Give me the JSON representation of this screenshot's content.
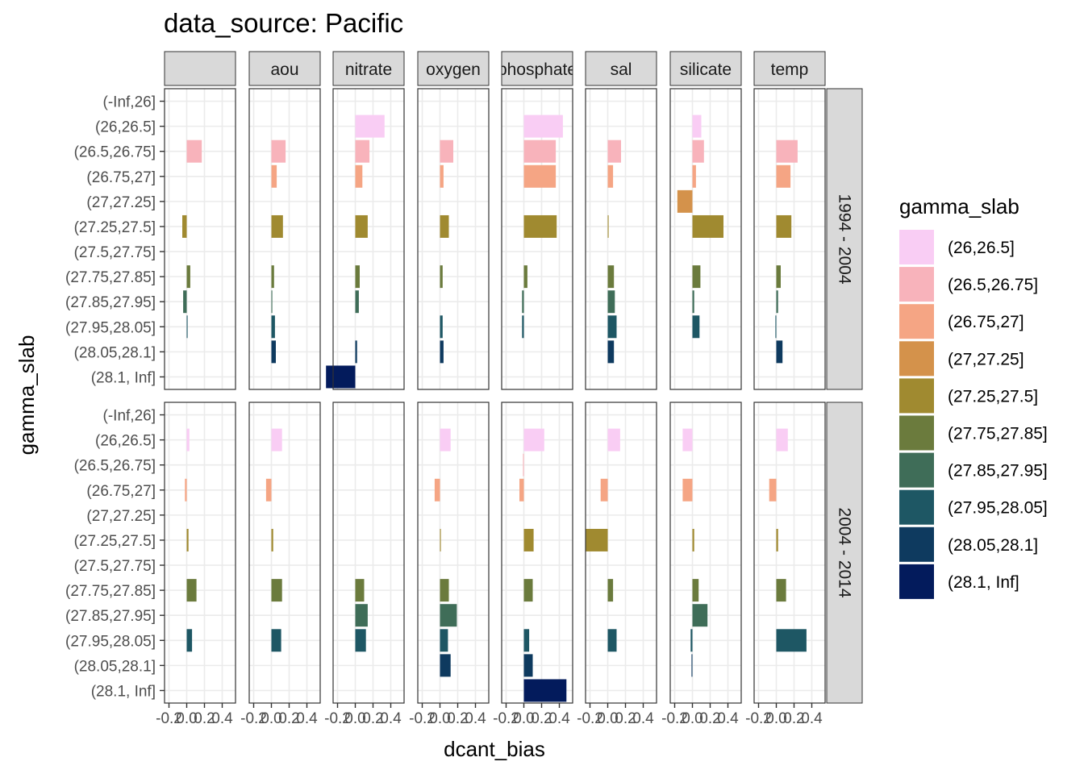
{
  "chart_data": {
    "type": "bar",
    "orientation": "horizontal",
    "title": "data_source: Pacific",
    "xlabel": "dcant_bias",
    "ylabel": "gamma_slab",
    "xlim": [
      -0.25,
      0.55
    ],
    "xticks": [
      -0.2,
      0.0,
      0.2,
      0.4
    ],
    "xtick_labels": [
      "-0.2",
      "0.0",
      "0.2",
      "0.4"
    ],
    "grid": true,
    "legend_position": "right",
    "legend_title": "gamma_slab",
    "categories": [
      "(-Inf,26]",
      "(26,26.5]",
      "(26.5,26.75]",
      "(26.75,27]",
      "(27,27.25]",
      "(27.25,27.5]",
      "(27.5,27.75]",
      "(27.75,27.85]",
      "(27.85,27.95]",
      "(27.95,28.05]",
      "(28.05,28.1]",
      "(28.1, Inf]"
    ],
    "legend_entries": [
      "(26,26.5]",
      "(26.5,26.75]",
      "(26.75,27]",
      "(27,27.25]",
      "(27.25,27.5]",
      "(27.75,27.85]",
      "(27.85,27.95]",
      "(27.95,28.05]",
      "(28.05,28.1]",
      "(28.1, Inf]"
    ],
    "colors": {
      "(26,26.5]": "#f9cdf4",
      "(26.5,26.75]": "#f8b3bb",
      "(26.75,27]": "#f5a584",
      "(27,27.25]": "#d4924b",
      "(27.25,27.5]": "#a08a30",
      "(27.75,27.85]": "#6b7b3d",
      "(27.85,27.95]": "#3f6d58",
      "(27.95,28.05]": "#1e5764",
      "(28.05,28.1]": "#0e3a5f",
      "(28.1, Inf]": "#031b5c"
    },
    "col_facets": [
      "",
      "aou",
      "nitrate",
      "oxygen",
      "phosphate",
      "sal",
      "silicate",
      "temp"
    ],
    "row_facets": [
      "1994 - 2004",
      "2004 - 2014"
    ],
    "panels": [
      {
        "row": "1994 - 2004",
        "col": "",
        "bars": {
          "(26.5,26.75]": 0.17,
          "(27.25,27.5]": -0.05,
          "(27.75,27.85]": 0.04,
          "(27.85,27.95]": -0.04,
          "(27.95,28.05]": 0.01
        }
      },
      {
        "row": "1994 - 2004",
        "col": "aou",
        "bars": {
          "(26.5,26.75]": 0.16,
          "(26.75,27]": 0.06,
          "(27.25,27.5]": 0.13,
          "(27.75,27.85]": 0.03,
          "(27.85,27.95]": 0.01,
          "(27.95,28.05]": 0.04,
          "(28.05,28.1]": 0.05
        }
      },
      {
        "row": "1994 - 2004",
        "col": "nitrate",
        "bars": {
          "(26,26.5]": 0.33,
          "(26.5,26.75]": 0.16,
          "(26.75,27]": 0.08,
          "(27.25,27.5]": 0.14,
          "(27.75,27.85]": 0.05,
          "(27.85,27.95]": 0.04,
          "(28.05,28.1]": 0.02,
          "(28.1, Inf]": -0.33
        }
      },
      {
        "row": "1994 - 2004",
        "col": "oxygen",
        "bars": {
          "(26.5,26.75]": 0.15,
          "(26.75,27]": 0.04,
          "(27.25,27.5]": 0.1,
          "(27.75,27.85]": 0.03,
          "(27.95,28.05]": 0.03,
          "(28.05,28.1]": 0.04
        }
      },
      {
        "row": "1994 - 2004",
        "col": "phosphate",
        "bars": {
          "(26,26.5]": 0.44,
          "(26.5,26.75]": 0.36,
          "(26.75,27]": 0.36,
          "(27.25,27.5]": 0.37,
          "(27.75,27.85]": 0.04,
          "(27.85,27.95]": -0.02,
          "(27.95,28.05]": -0.02
        }
      },
      {
        "row": "1994 - 2004",
        "col": "sal",
        "bars": {
          "(26.5,26.75]": 0.15,
          "(26.75,27]": 0.06,
          "(27.25,27.5]": 0.01,
          "(27.75,27.85]": 0.07,
          "(27.85,27.95]": 0.08,
          "(27.95,28.05]": 0.1,
          "(28.05,28.1]": 0.07
        }
      },
      {
        "row": "1994 - 2004",
        "col": "silicate",
        "bars": {
          "(26,26.5]": 0.1,
          "(26.5,26.75]": 0.13,
          "(26.75,27]": 0.04,
          "(27,27.25]": -0.17,
          "(27.25,27.5]": 0.35,
          "(27.75,27.85]": 0.09,
          "(27.85,27.95]": 0.02,
          "(27.95,28.05]": 0.08
        }
      },
      {
        "row": "1994 - 2004",
        "col": "temp",
        "bars": {
          "(26.5,26.75]": 0.24,
          "(26.75,27]": 0.16,
          "(27.25,27.5]": 0.17,
          "(27.75,27.85]": 0.05,
          "(27.85,27.95]": 0.02,
          "(27.95,28.05]": -0.01,
          "(28.05,28.1]": 0.07
        }
      },
      {
        "row": "2004 - 2014",
        "col": "",
        "bars": {
          "(26,26.5]": 0.03,
          "(26.75,27]": -0.02,
          "(27.25,27.5]": 0.02,
          "(27.75,27.85]": 0.11,
          "(27.95,28.05]": 0.06
        }
      },
      {
        "row": "2004 - 2014",
        "col": "aou",
        "bars": {
          "(26,26.5]": 0.12,
          "(26.75,27]": -0.06,
          "(27.25,27.5]": 0.02,
          "(27.75,27.85]": 0.12,
          "(27.95,28.05]": 0.11
        }
      },
      {
        "row": "2004 - 2014",
        "col": "nitrate",
        "bars": {
          "(27.75,27.85]": 0.1,
          "(27.85,27.95]": 0.14,
          "(27.95,28.05]": 0.12
        }
      },
      {
        "row": "2004 - 2014",
        "col": "oxygen",
        "bars": {
          "(26,26.5]": 0.12,
          "(26.75,27]": -0.06,
          "(27.25,27.5]": 0.01,
          "(27.75,27.85]": 0.1,
          "(27.85,27.95]": 0.19,
          "(27.95,28.05]": 0.09,
          "(28.05,28.1]": 0.12
        }
      },
      {
        "row": "2004 - 2014",
        "col": "phosphate",
        "bars": {
          "(26,26.5]": 0.23,
          "(26.5,26.75]": -0.01,
          "(26.75,27]": -0.05,
          "(27.25,27.5]": 0.11,
          "(27.75,27.85]": 0.1,
          "(27.95,28.05]": 0.06,
          "(28.05,28.1]": 0.1,
          "(28.1, Inf]": 0.48
        }
      },
      {
        "row": "2004 - 2014",
        "col": "sal",
        "bars": {
          "(26,26.5]": 0.14,
          "(26.75,27]": -0.08,
          "(27.25,27.5]": -0.25,
          "(27.75,27.85]": 0.06,
          "(27.95,28.05]": 0.1
        }
      },
      {
        "row": "2004 - 2014",
        "col": "silicate",
        "bars": {
          "(26,26.5]": -0.11,
          "(26.75,27]": -0.11,
          "(27.25,27.5]": 0.02,
          "(27.75,27.85]": 0.07,
          "(27.85,27.95]": 0.17,
          "(27.95,28.05]": -0.02,
          "(28.05,28.1]": -0.01
        }
      },
      {
        "row": "2004 - 2014",
        "col": "temp",
        "bars": {
          "(26,26.5]": 0.13,
          "(26.75,27]": -0.08,
          "(27.25,27.5]": 0.02,
          "(27.75,27.85]": 0.11,
          "(27.95,28.05]": 0.34
        }
      }
    ]
  }
}
